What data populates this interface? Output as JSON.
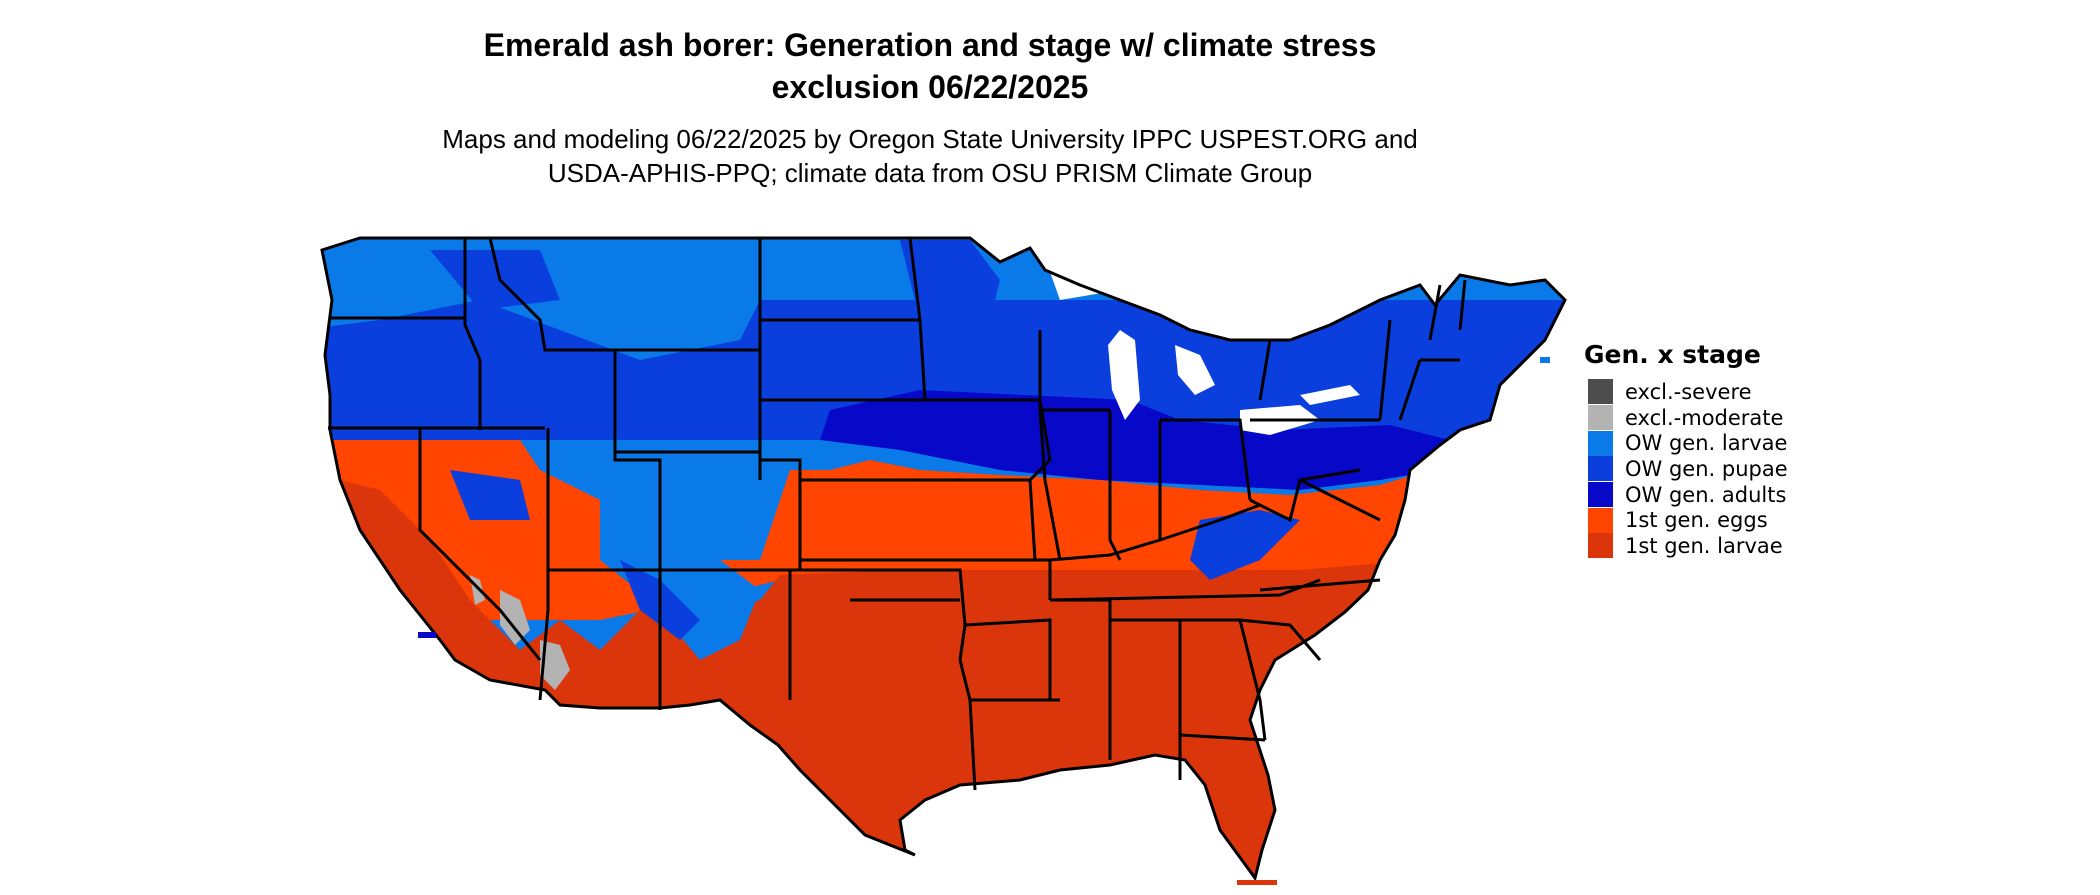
{
  "title": {
    "line1": "Emerald ash borer: Generation and stage w/ climate stress",
    "line2": "exclusion 06/22/2025"
  },
  "subtitle": {
    "line1": "Maps and modeling 06/22/2025 by Oregon State University IPPC USPEST.ORG and",
    "line2": "USDA-APHIS-PPQ; climate data from OSU PRISM Climate Group"
  },
  "legend": {
    "title": "Gen. x stage",
    "items": [
      {
        "label": "excl.-severe",
        "color": "#4d4d4d"
      },
      {
        "label": "excl.-moderate",
        "color": "#b3b3b3"
      },
      {
        "label": "OW gen. larvae",
        "color": "#0a7ae8"
      },
      {
        "label": "OW gen. pupae",
        "color": "#0a3fde"
      },
      {
        "label": "OW gen. adults",
        "color": "#0808c9"
      },
      {
        "label": "1st gen. eggs",
        "color": "#ff4500"
      },
      {
        "label": "1st gen. larvae",
        "color": "#db350c"
      }
    ]
  }
}
